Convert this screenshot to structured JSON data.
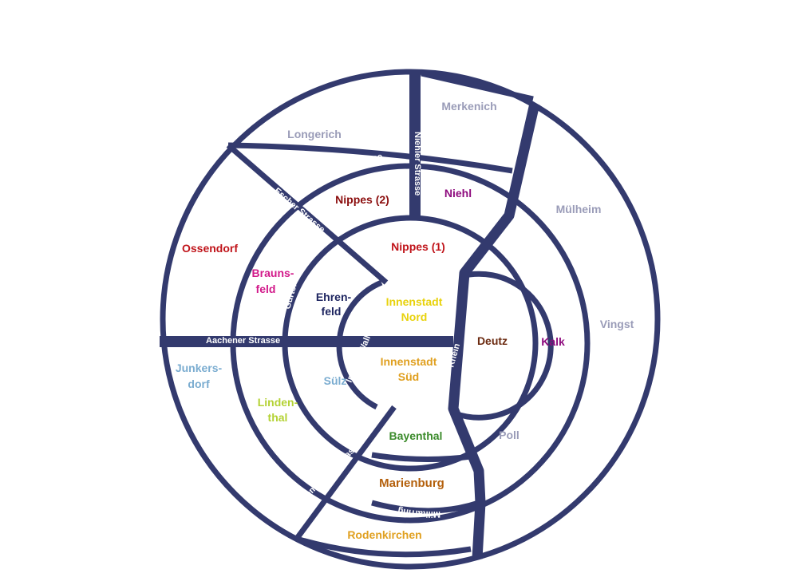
{
  "map": {
    "line_color": "#333a6e",
    "districts": [
      {
        "id": "longerich",
        "name": "Longerich",
        "color": "#9a9cb8"
      },
      {
        "id": "merkenich",
        "name": "Merkenich",
        "color": "#9a9cb8"
      },
      {
        "id": "muelheim",
        "name": "Mülheim",
        "color": "#9a9cb8"
      },
      {
        "id": "vingst",
        "name": "Vingst",
        "color": "#9a9cb8"
      },
      {
        "id": "poll",
        "name": "Poll",
        "color": "#9a9cb8"
      },
      {
        "id": "ossendorf",
        "name": "Ossendorf",
        "color": "#c0141a"
      },
      {
        "id": "nippes2",
        "name": "Nippes (2)",
        "color": "#8b0d0d"
      },
      {
        "id": "niehl",
        "name": "Niehl",
        "color": "#8e0b7e"
      },
      {
        "id": "nippes1",
        "name": "Nippes (1)",
        "color": "#c0141a"
      },
      {
        "id": "braunsfeld1",
        "name": "Brauns-",
        "color": "#d21a8a"
      },
      {
        "id": "braunsfeld2",
        "name": "feld",
        "color": "#d21a8a"
      },
      {
        "id": "ehrenfeld1",
        "name": "Ehren-",
        "color": "#1e2560"
      },
      {
        "id": "ehrenfeld2",
        "name": "feld",
        "color": "#1e2560"
      },
      {
        "id": "innenstadt_nord1",
        "name": "Innenstadt",
        "color": "#e8d20c"
      },
      {
        "id": "innenstadt_nord2",
        "name": "Nord",
        "color": "#e8d20c"
      },
      {
        "id": "deutz",
        "name": "Deutz",
        "color": "#6b2a10"
      },
      {
        "id": "kalk",
        "name": "Kalk",
        "color": "#8e0b7e"
      },
      {
        "id": "innenstadt_sued1",
        "name": "Innenstadt",
        "color": "#e0a020"
      },
      {
        "id": "innenstadt_sued2",
        "name": "Süd",
        "color": "#e0a020"
      },
      {
        "id": "suelz",
        "name": "Sülz",
        "color": "#7aacd0"
      },
      {
        "id": "junkersdorf1",
        "name": "Junkers-",
        "color": "#7aacd0"
      },
      {
        "id": "junkersdorf2",
        "name": "dorf",
        "color": "#7aacd0"
      },
      {
        "id": "lindenthal1",
        "name": "Linden-",
        "color": "#b4d234"
      },
      {
        "id": "lindenthal2",
        "name": "thal",
        "color": "#b4d234"
      },
      {
        "id": "bayenthal",
        "name": "Bayenthal",
        "color": "#3a8a2a"
      },
      {
        "id": "marienburg",
        "name": "Marienburg",
        "color": "#b4600c"
      },
      {
        "id": "rodenkirchen",
        "name": "Rodenkirchen",
        "color": "#e0a020"
      }
    ],
    "streets": {
      "aeussere_kanalstrasse": "Äussere Kanalstrasse",
      "niehler_strasse": "Niehler Strasse",
      "escher_strasse": "Escher Strasse",
      "guertel": "Gürtel",
      "aachener_strasse": "Aachener Strasse",
      "innerer_wall": "Innerer Wall",
      "luxemburger_strasse": "Luxemburger Strasse",
      "militaerring": "Militärring",
      "rhein": "Rhein"
    }
  }
}
